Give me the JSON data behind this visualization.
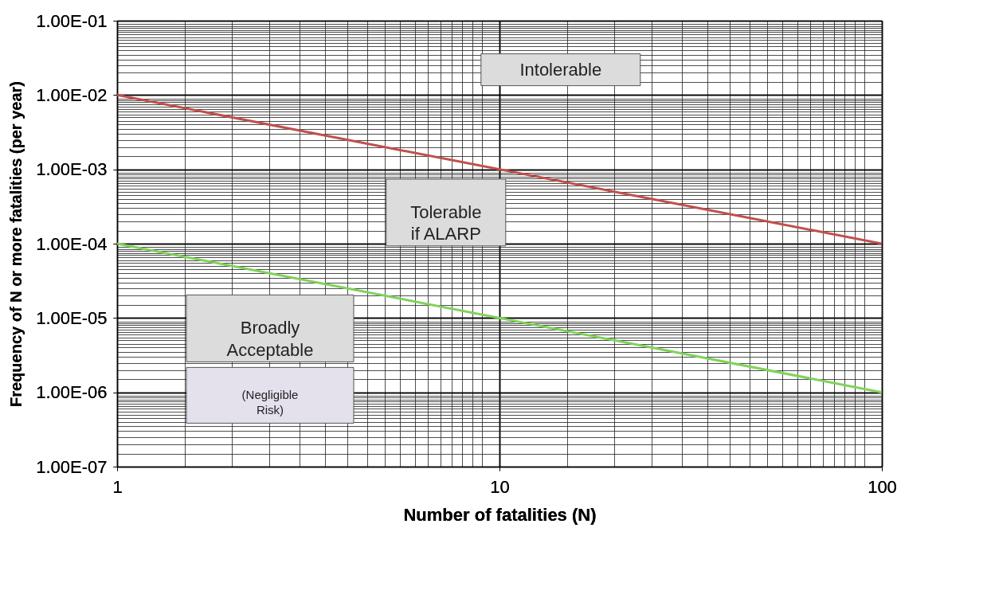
{
  "chart_data": {
    "type": "line",
    "xlabel": "Number of fatalities (N)",
    "ylabel": "Frequency of N or more fatalities (per year)",
    "log": "xy",
    "grid": true,
    "marker": "none",
    "line_style": "solid",
    "x": [
      1,
      100
    ],
    "xlim": [
      1,
      100
    ],
    "xticks": [
      1,
      10,
      100
    ],
    "ylim": [
      1e-07,
      0.1
    ],
    "yticks": [
      {
        "value": 1e-07,
        "label": "1.00E-07"
      },
      {
        "value": 1e-06,
        "label": "1.00E-06"
      },
      {
        "value": 1e-05,
        "label": "1.00E-05"
      },
      {
        "value": 0.0001,
        "label": "1.00E-04"
      },
      {
        "value": 0.001,
        "label": "1.00E-03"
      },
      {
        "value": 0.01,
        "label": "1.00E-02"
      },
      {
        "value": 0.1,
        "label": "1.00E-01"
      }
    ],
    "series": [
      {
        "color": "#c0504d",
        "values": [
          0.01,
          0.0001
        ]
      },
      {
        "color": "#7fd35a",
        "values": [
          0.0001,
          1e-06
        ]
      }
    ],
    "annotations": [
      "Intolerable",
      "Tolerable if ALARP",
      "Broadly Acceptable",
      "(Negligible Risk)"
    ]
  }
}
